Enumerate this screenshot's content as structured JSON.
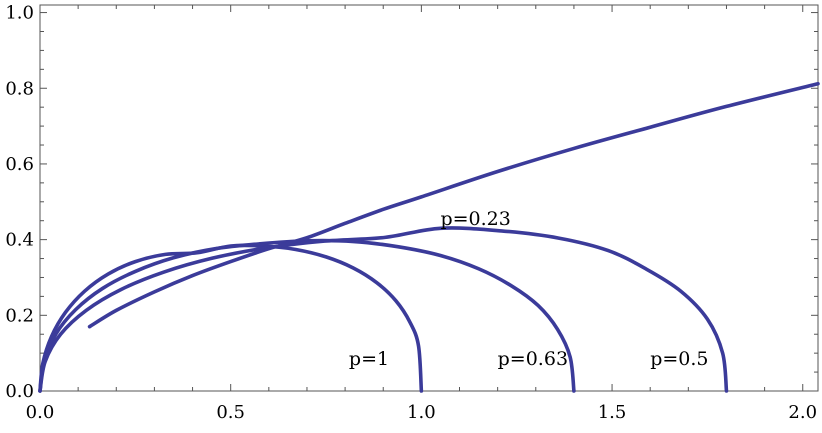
{
  "chart_data": {
    "type": "line",
    "title": "",
    "xlabel": "",
    "ylabel": "",
    "xlim": [
      0.0,
      2.04
    ],
    "ylim": [
      0.0,
      1.02
    ],
    "grid": false,
    "series_color": "#3b3b9a",
    "x_ticks": [
      "0.0",
      "0.5",
      "1.0",
      "1.5",
      "2.0"
    ],
    "x_tick_values": [
      0.0,
      0.5,
      1.0,
      1.5,
      2.0
    ],
    "y_ticks": [
      "0.0",
      "0.2",
      "0.4",
      "0.6",
      "0.8",
      "1.0"
    ],
    "y_tick_values": [
      0.0,
      0.2,
      0.4,
      0.6,
      0.8,
      1.0
    ],
    "series": [
      {
        "points": [
          [
            0,
            0
          ],
          [
            0.0075,
            0.0732
          ],
          [
            0.03,
            0.1435
          ],
          [
            0.0668,
            0.2078
          ],
          [
            0.117,
            0.2638
          ],
          [
            0.1786,
            0.309
          ],
          [
            0.25,
            0.3419
          ],
          [
            0.329,
            0.361
          ],
          [
            0.4123,
            0.3653
          ],
          [
            0.5,
            0.3832
          ],
          [
            0.5868,
            0.3832
          ],
          [
            0.6706,
            0.374
          ],
          [
            0.75,
            0.3544
          ],
          [
            0.8214,
            0.3251
          ],
          [
            0.883,
            0.2863
          ],
          [
            0.933,
            0.2386
          ],
          [
            0.9698,
            0.1822
          ],
          [
            0.9925,
            0.1195
          ],
          [
            1.0,
            0.0
          ]
        ]
      },
      {
        "points": [
          [
            0,
            0
          ],
          [
            0.0105,
            0.075
          ],
          [
            0.042,
            0.151
          ],
          [
            0.0935,
            0.215
          ],
          [
            0.164,
            0.271
          ],
          [
            0.25,
            0.316
          ],
          [
            0.35,
            0.352
          ],
          [
            0.46,
            0.376
          ],
          [
            0.577,
            0.389
          ],
          [
            0.7,
            0.397
          ],
          [
            0.823,
            0.395
          ],
          [
            0.94,
            0.381
          ],
          [
            1.05,
            0.358
          ],
          [
            1.15,
            0.323
          ],
          [
            1.236,
            0.278
          ],
          [
            1.306,
            0.226
          ],
          [
            1.357,
            0.163
          ],
          [
            1.39,
            0.09
          ],
          [
            1.4,
            0.0
          ]
        ]
      },
      {
        "points": [
          [
            0,
            0
          ],
          [
            0.0136,
            0.078
          ],
          [
            0.054,
            0.15
          ],
          [
            0.121,
            0.213
          ],
          [
            0.212,
            0.268
          ],
          [
            0.324,
            0.314
          ],
          [
            0.452,
            0.351
          ],
          [
            0.592,
            0.378
          ],
          [
            0.746,
            0.396
          ],
          [
            0.905,
            0.406
          ],
          [
            1.05,
            0.43
          ],
          [
            1.21,
            0.423
          ],
          [
            1.36,
            0.404
          ],
          [
            1.49,
            0.371
          ],
          [
            1.59,
            0.322
          ],
          [
            1.68,
            0.264
          ],
          [
            1.75,
            0.19
          ],
          [
            1.79,
            0.1
          ],
          [
            1.8,
            0.0
          ]
        ]
      },
      {
        "points": [
          [
            0.13,
            0.17
          ],
          [
            0.2,
            0.213
          ],
          [
            0.3,
            0.262
          ],
          [
            0.4,
            0.305
          ],
          [
            0.5,
            0.342
          ],
          [
            0.6,
            0.376
          ],
          [
            0.7,
            0.405
          ],
          [
            0.8,
            0.443
          ],
          [
            0.9,
            0.48
          ],
          [
            1.0,
            0.513
          ],
          [
            1.2,
            0.58
          ],
          [
            1.4,
            0.641
          ],
          [
            1.6,
            0.697
          ],
          [
            1.8,
            0.752
          ],
          [
            2.04,
            0.812
          ]
        ]
      }
    ],
    "annotations": [
      {
        "text": "p=1",
        "x": 0.81,
        "y": 0.085
      },
      {
        "text": "p=0.63",
        "x": 1.2,
        "y": 0.085
      },
      {
        "text": "p=0.5",
        "x": 1.6,
        "y": 0.085
      },
      {
        "text": "p=0.23",
        "x": 1.05,
        "y": 0.455
      }
    ]
  }
}
